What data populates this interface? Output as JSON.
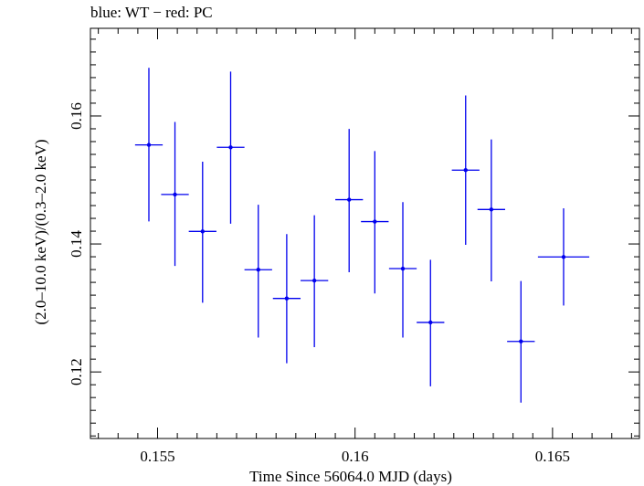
{
  "chart_data": {
    "type": "scatter",
    "title": "blue: WT − red: PC",
    "xlabel": "Time Since 56064.0 MJD (days)",
    "ylabel": "(2.0–10.0 keV)/(0.3–2.0 keV)",
    "xlim": [
      0.1533,
      0.1672
    ],
    "ylim": [
      0.1096,
      0.1737
    ],
    "x_ticks": [
      "0.155",
      "0.16",
      "0.165"
    ],
    "x_tick_values": [
      0.155,
      0.16,
      0.165
    ],
    "y_ticks": [
      "0.12",
      "0.14",
      "0.16"
    ],
    "y_tick_values": [
      0.12,
      0.14,
      0.16
    ],
    "grid": false,
    "colors": {
      "wt": "#0000ee"
    },
    "series": [
      {
        "x": [
          0.15478,
          0.15544,
          0.15614,
          0.15685,
          0.15755,
          0.15827,
          0.15897,
          0.15985,
          0.1605,
          0.16121,
          0.16191,
          0.1628,
          0.16345,
          0.1642,
          0.16528
        ],
        "y": [
          0.15548,
          0.14773,
          0.14196,
          0.1551,
          0.13598,
          0.13149,
          0.13428,
          0.14692,
          0.1435,
          0.13615,
          0.12774,
          0.15154,
          0.14539,
          0.12477,
          0.13797
        ],
        "x_err": [
          0.00035,
          0.00035,
          0.00035,
          0.00035,
          0.00035,
          0.00035,
          0.00035,
          0.00035,
          0.00035,
          0.00035,
          0.00035,
          0.00035,
          0.00035,
          0.00035,
          0.00065
        ],
        "y_low": [
          0.14352,
          0.13656,
          0.13081,
          0.14317,
          0.12537,
          0.12136,
          0.12388,
          0.13559,
          0.13226,
          0.12537,
          0.11775,
          0.13986,
          0.13415,
          0.1152,
          0.13038
        ],
        "y_high": [
          0.16752,
          0.15907,
          0.15286,
          0.16693,
          0.14613,
          0.14155,
          0.14449,
          0.15798,
          0.15452,
          0.14654,
          0.13753,
          0.16321,
          0.15634,
          0.13421,
          0.14557
        ]
      }
    ]
  }
}
